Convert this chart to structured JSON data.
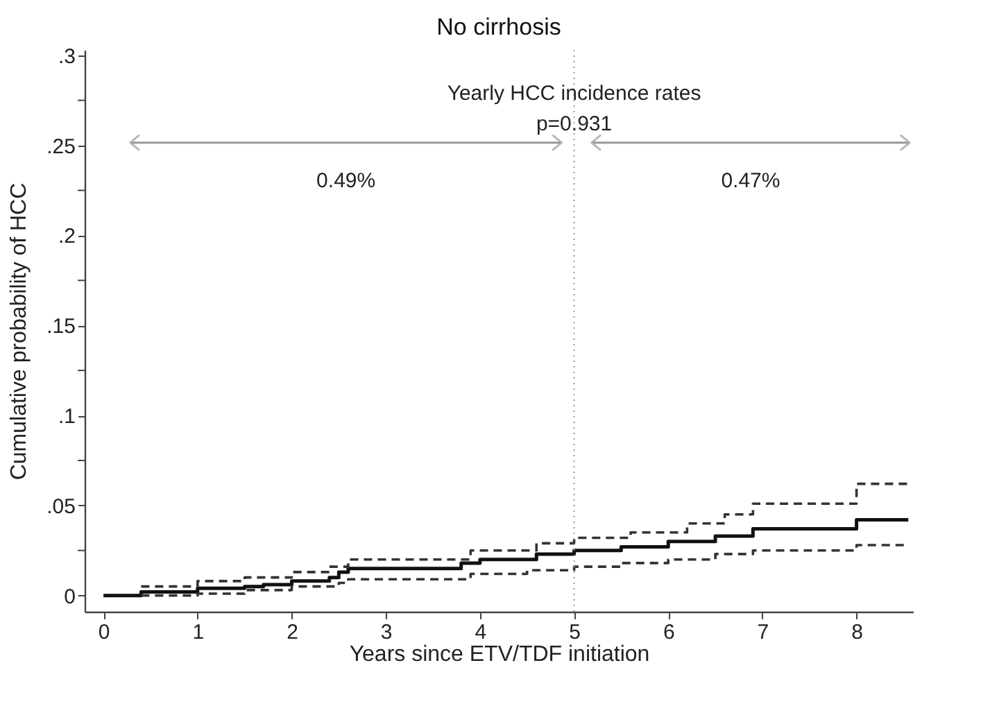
{
  "chart_data": {
    "type": "step",
    "title": "No cirrhosis",
    "xlabel": "Years since ETV/TDF initiation",
    "ylabel": "Cumulative probability of HCC",
    "series": [
      {
        "color": "#111111",
        "line_style": "solid",
        "x": [
          0,
          0.4,
          1,
          1.5,
          1.7,
          2,
          2.4,
          2.5,
          2.6,
          3.8,
          4,
          4.6,
          5,
          5.5,
          6,
          6.5,
          6.9,
          8,
          8.55
        ],
        "values": [
          0,
          0.002,
          0.004,
          0.005,
          0.006,
          0.008,
          0.01,
          0.013,
          0.015,
          0.018,
          0.02,
          0.023,
          0.025,
          0.027,
          0.03,
          0.033,
          0.037,
          0.042,
          0.042
        ]
      },
      {
        "color": "#333333",
        "line_style": "dashed",
        "x": [
          0.4,
          1,
          1.5,
          2,
          2.4,
          2.6,
          3.9,
          4.6,
          5,
          5.6,
          6.2,
          6.6,
          6.9,
          8,
          8.55
        ],
        "values": [
          0.005,
          0.008,
          0.01,
          0.013,
          0.016,
          0.02,
          0.025,
          0.029,
          0.032,
          0.035,
          0.04,
          0.045,
          0.051,
          0.062,
          0.062
        ]
      },
      {
        "color": "#333333",
        "line_style": "dashed",
        "x": [
          0.4,
          1,
          1.5,
          2,
          2.5,
          2.6,
          3.9,
          4.5,
          5,
          5.5,
          6,
          6.5,
          6.9,
          8,
          8.55
        ],
        "values": [
          0,
          0.001,
          0.003,
          0.005,
          0.007,
          0.009,
          0.012,
          0.014,
          0.016,
          0.018,
          0.02,
          0.023,
          0.025,
          0.028,
          0.028
        ]
      }
    ],
    "xlim": [
      -0.2,
      8.6
    ],
    "ylim": [
      -0.009,
      0.303
    ],
    "xticks": [
      0,
      1,
      2,
      3,
      4,
      5,
      6,
      7,
      8
    ],
    "yticks": [
      0,
      {
        "value": 0.025,
        "label": null
      },
      {
        "value": 0.05,
        "label": ".05"
      },
      {
        "value": 0.075,
        "label": null
      },
      {
        "value": 0.1,
        "label": ".1"
      },
      {
        "value": 0.125,
        "label": null
      },
      {
        "value": 0.15,
        "label": ".15"
      },
      {
        "value": 0.175,
        "label": null
      },
      {
        "value": 0.2,
        "label": ".2"
      },
      {
        "value": 0.225,
        "label": null
      },
      {
        "value": 0.25,
        "label": ".25"
      },
      {
        "value": 0.275,
        "label": null
      },
      {
        "value": 0.3,
        "label": ".3"
      }
    ],
    "ref_lines": [
      {
        "axis": "x",
        "value": 5,
        "color": "#999999",
        "line_style": "dotted"
      }
    ],
    "annotations": [
      {
        "text": "Yearly HCC incidence rates",
        "x": 5,
        "y": 0.279
      },
      {
        "text": "p=0.931",
        "x": 5,
        "y": 0.262
      },
      "0.49%",
      "0.47%"
    ],
    "grid": false
  }
}
